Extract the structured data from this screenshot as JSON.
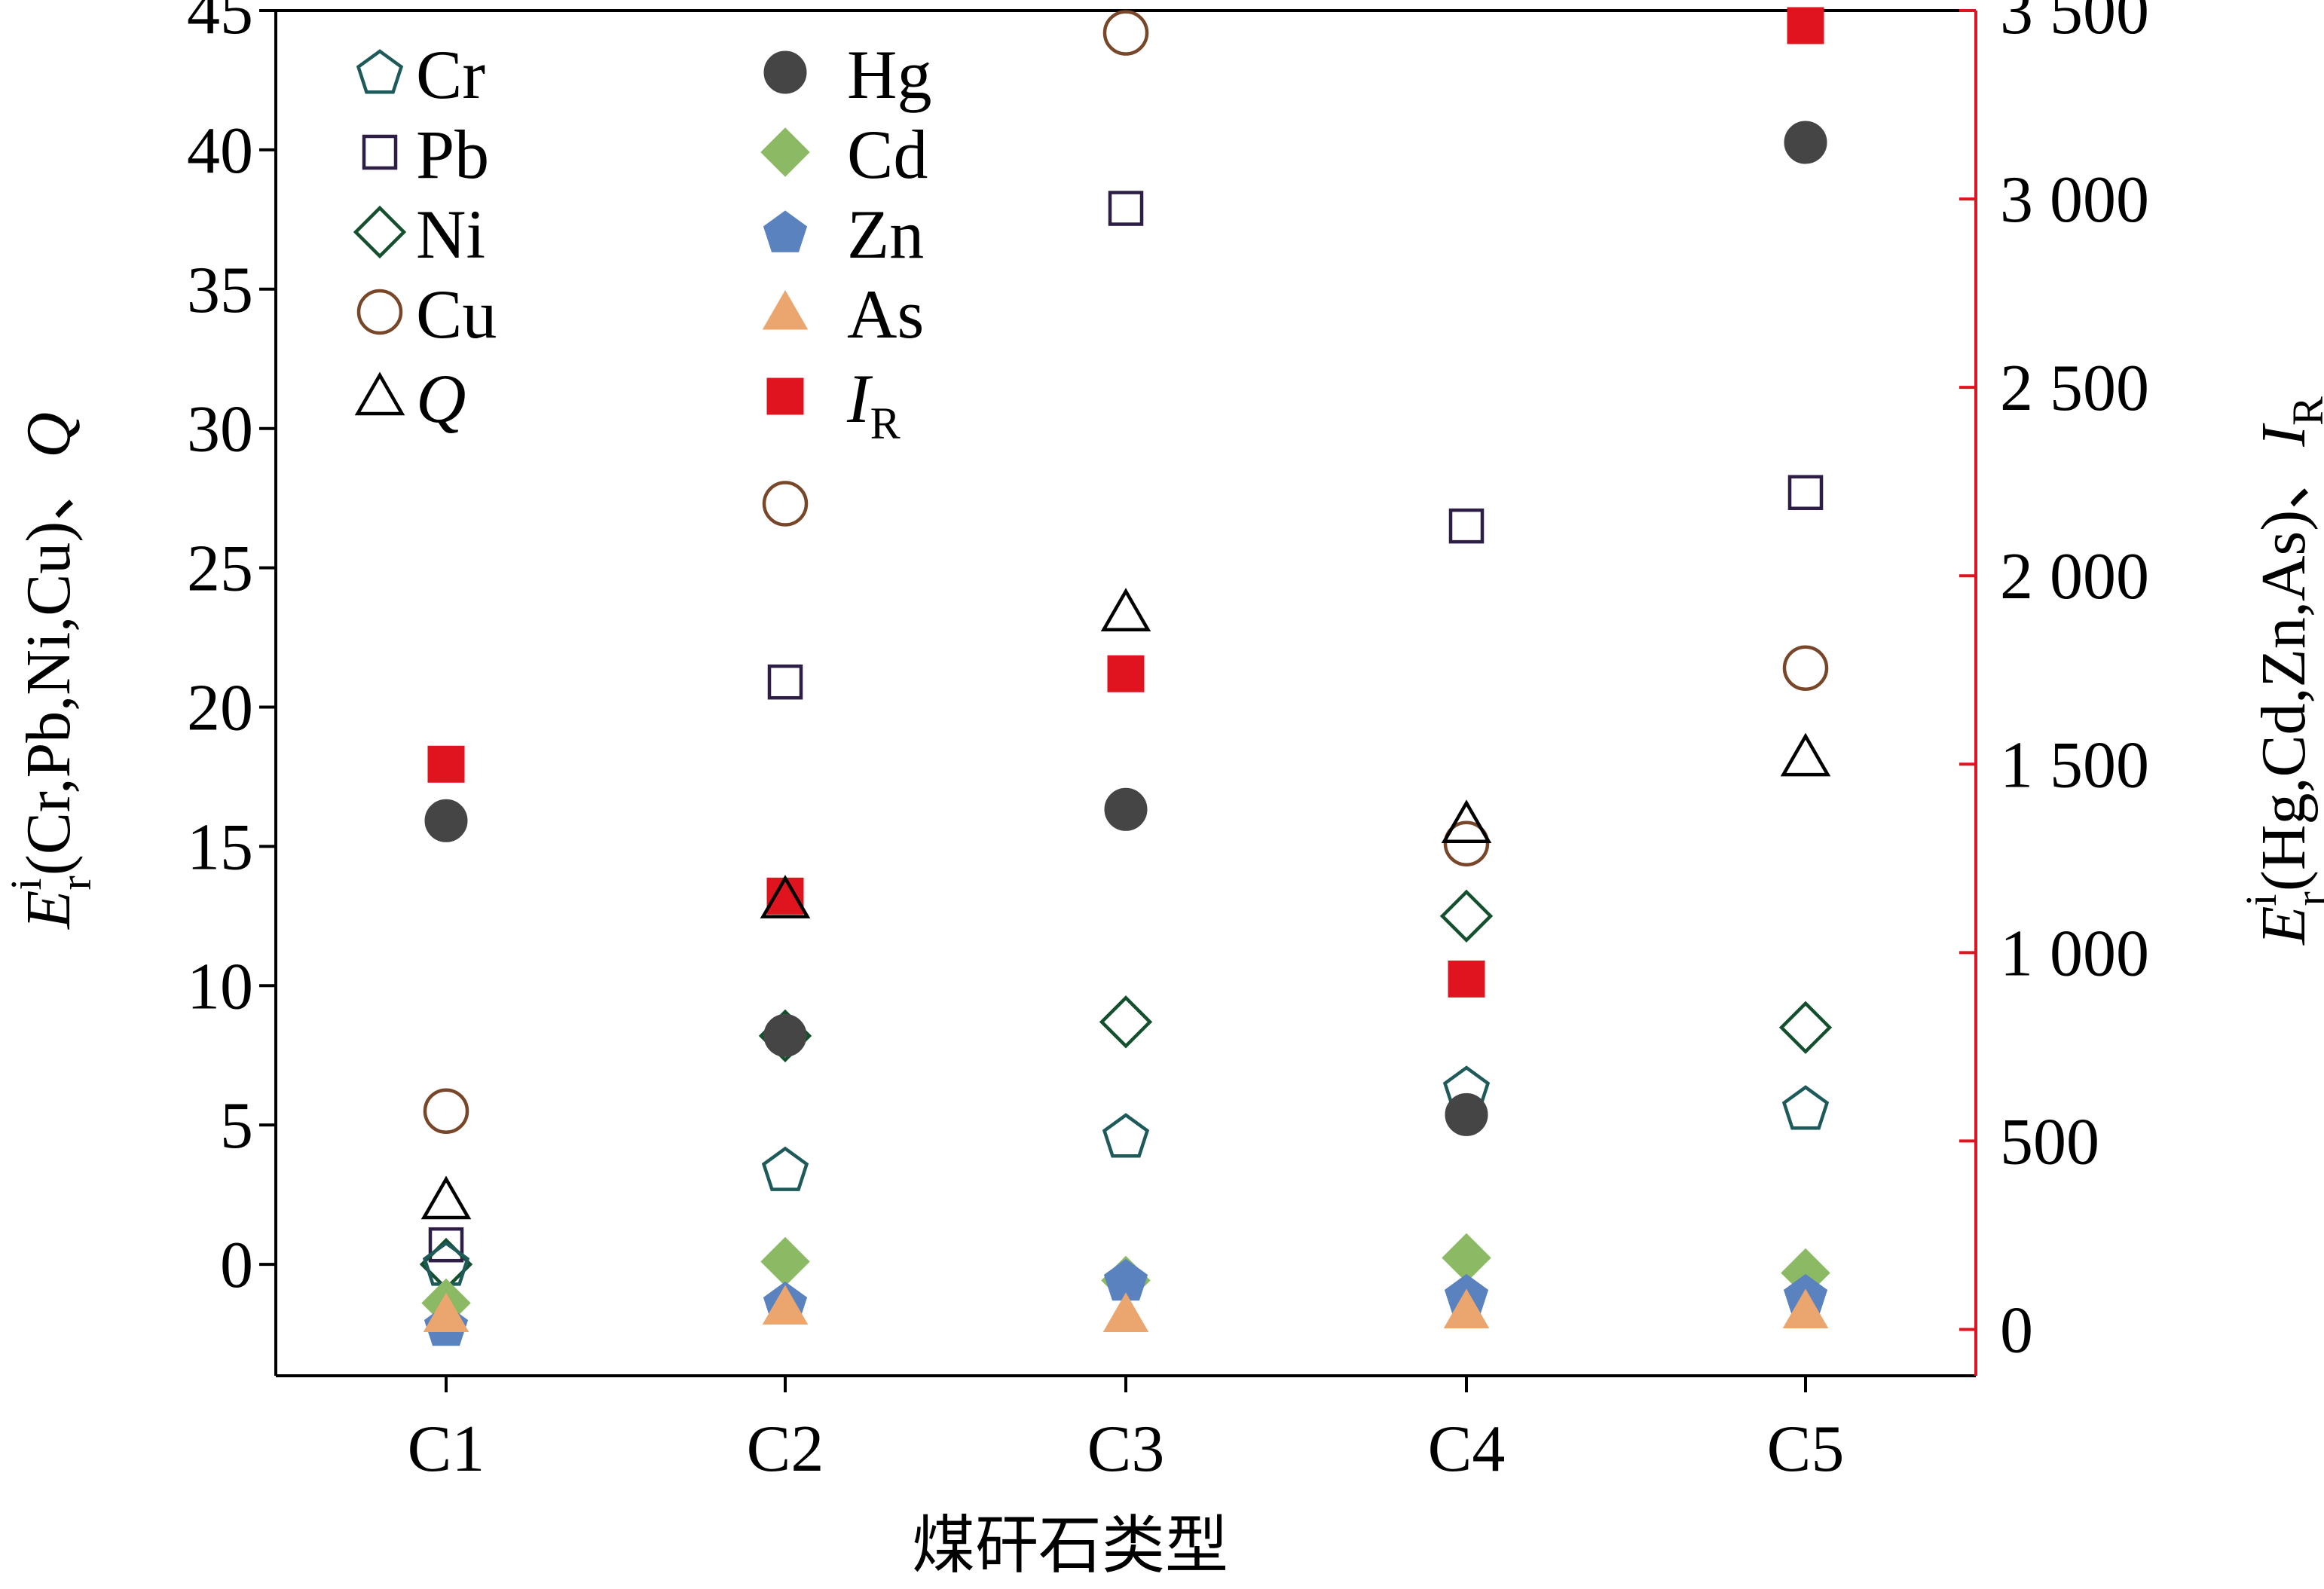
{
  "chart_data": {
    "type": "scatter",
    "categories": [
      "C1",
      "C2",
      "C3",
      "C4",
      "C5"
    ],
    "xlabel": "煤矸石类型",
    "ylabel_left": {
      "main": "E",
      "sup": "i",
      "sub": "r",
      "rest": "(Cr,Pb,Ni,Cu)、",
      "q": "Q"
    },
    "ylabel_right": {
      "main": "E",
      "sup": "i",
      "sub": "r",
      "rest": "(Hg,Cd,Zn,As)、",
      "ir_main": "I",
      "ir_sub": "R"
    },
    "y_left": {
      "lim": [
        -4,
        45
      ],
      "ticks": [
        0,
        5,
        10,
        15,
        20,
        25,
        30,
        35,
        40,
        45
      ],
      "tick_labels": [
        "0",
        "5",
        "10",
        "15",
        "20",
        "25",
        "30",
        "35",
        "40",
        "45"
      ]
    },
    "y_right": {
      "lim": [
        -123,
        3500
      ],
      "ticks": [
        0,
        500,
        1000,
        1500,
        2000,
        2500,
        3000,
        3500
      ],
      "tick_labels": [
        "0",
        "500",
        "1 000",
        "1 500",
        "2 000",
        "2 500",
        "3 000",
        "3 500"
      ],
      "color": "#e0141e"
    },
    "grid": false,
    "legend_position": "top-left",
    "series": [
      {
        "name": "Cr",
        "axis": "left",
        "marker": "pentagon",
        "filled": false,
        "color": "#1e5a5a",
        "values": [
          0.0,
          3.4,
          4.6,
          6.3,
          5.6
        ]
      },
      {
        "name": "Pb",
        "axis": "left",
        "marker": "square",
        "filled": false,
        "color": "#2d1e46",
        "values": [
          0.7,
          20.9,
          37.9,
          26.5,
          27.7
        ]
      },
      {
        "name": "Ni",
        "axis": "left",
        "marker": "diamond",
        "filled": false,
        "color": "#14502d",
        "values": [
          0.0,
          8.2,
          8.7,
          12.5,
          8.5
        ]
      },
      {
        "name": "Cu",
        "axis": "left",
        "marker": "circle",
        "filled": false,
        "color": "#784628",
        "values": [
          5.5,
          27.3,
          44.2,
          15.1,
          21.4
        ]
      },
      {
        "name": "Q",
        "axis": "left",
        "italic": true,
        "marker": "triangle",
        "filled": false,
        "color": "#000000",
        "values": [
          2.3,
          13.1,
          23.4,
          15.8,
          18.2
        ]
      },
      {
        "name": "Hg",
        "axis": "right",
        "marker": "circle",
        "filled": true,
        "color": "#454545",
        "values": [
          1350,
          780,
          1380,
          570,
          3150
        ]
      },
      {
        "name": "Cd",
        "axis": "right",
        "marker": "diamond",
        "filled": true,
        "color": "#8cb964",
        "values": [
          70,
          180,
          130,
          190,
          150
        ]
      },
      {
        "name": "Zn",
        "axis": "right",
        "marker": "pentagon",
        "filled": true,
        "color": "#5a82be",
        "values": [
          10,
          70,
          130,
          90,
          90
        ]
      },
      {
        "name": "As",
        "axis": "right",
        "marker": "triangle",
        "filled": true,
        "color": "#eba56e",
        "values": [
          40,
          60,
          40,
          50,
          50
        ]
      },
      {
        "name": "IR",
        "label_main": "I",
        "label_sub": "R",
        "italic": true,
        "axis": "right",
        "marker": "square",
        "filled": true,
        "color": "#e0141e",
        "values": [
          1500,
          1150,
          1740,
          930,
          3460
        ]
      }
    ]
  }
}
